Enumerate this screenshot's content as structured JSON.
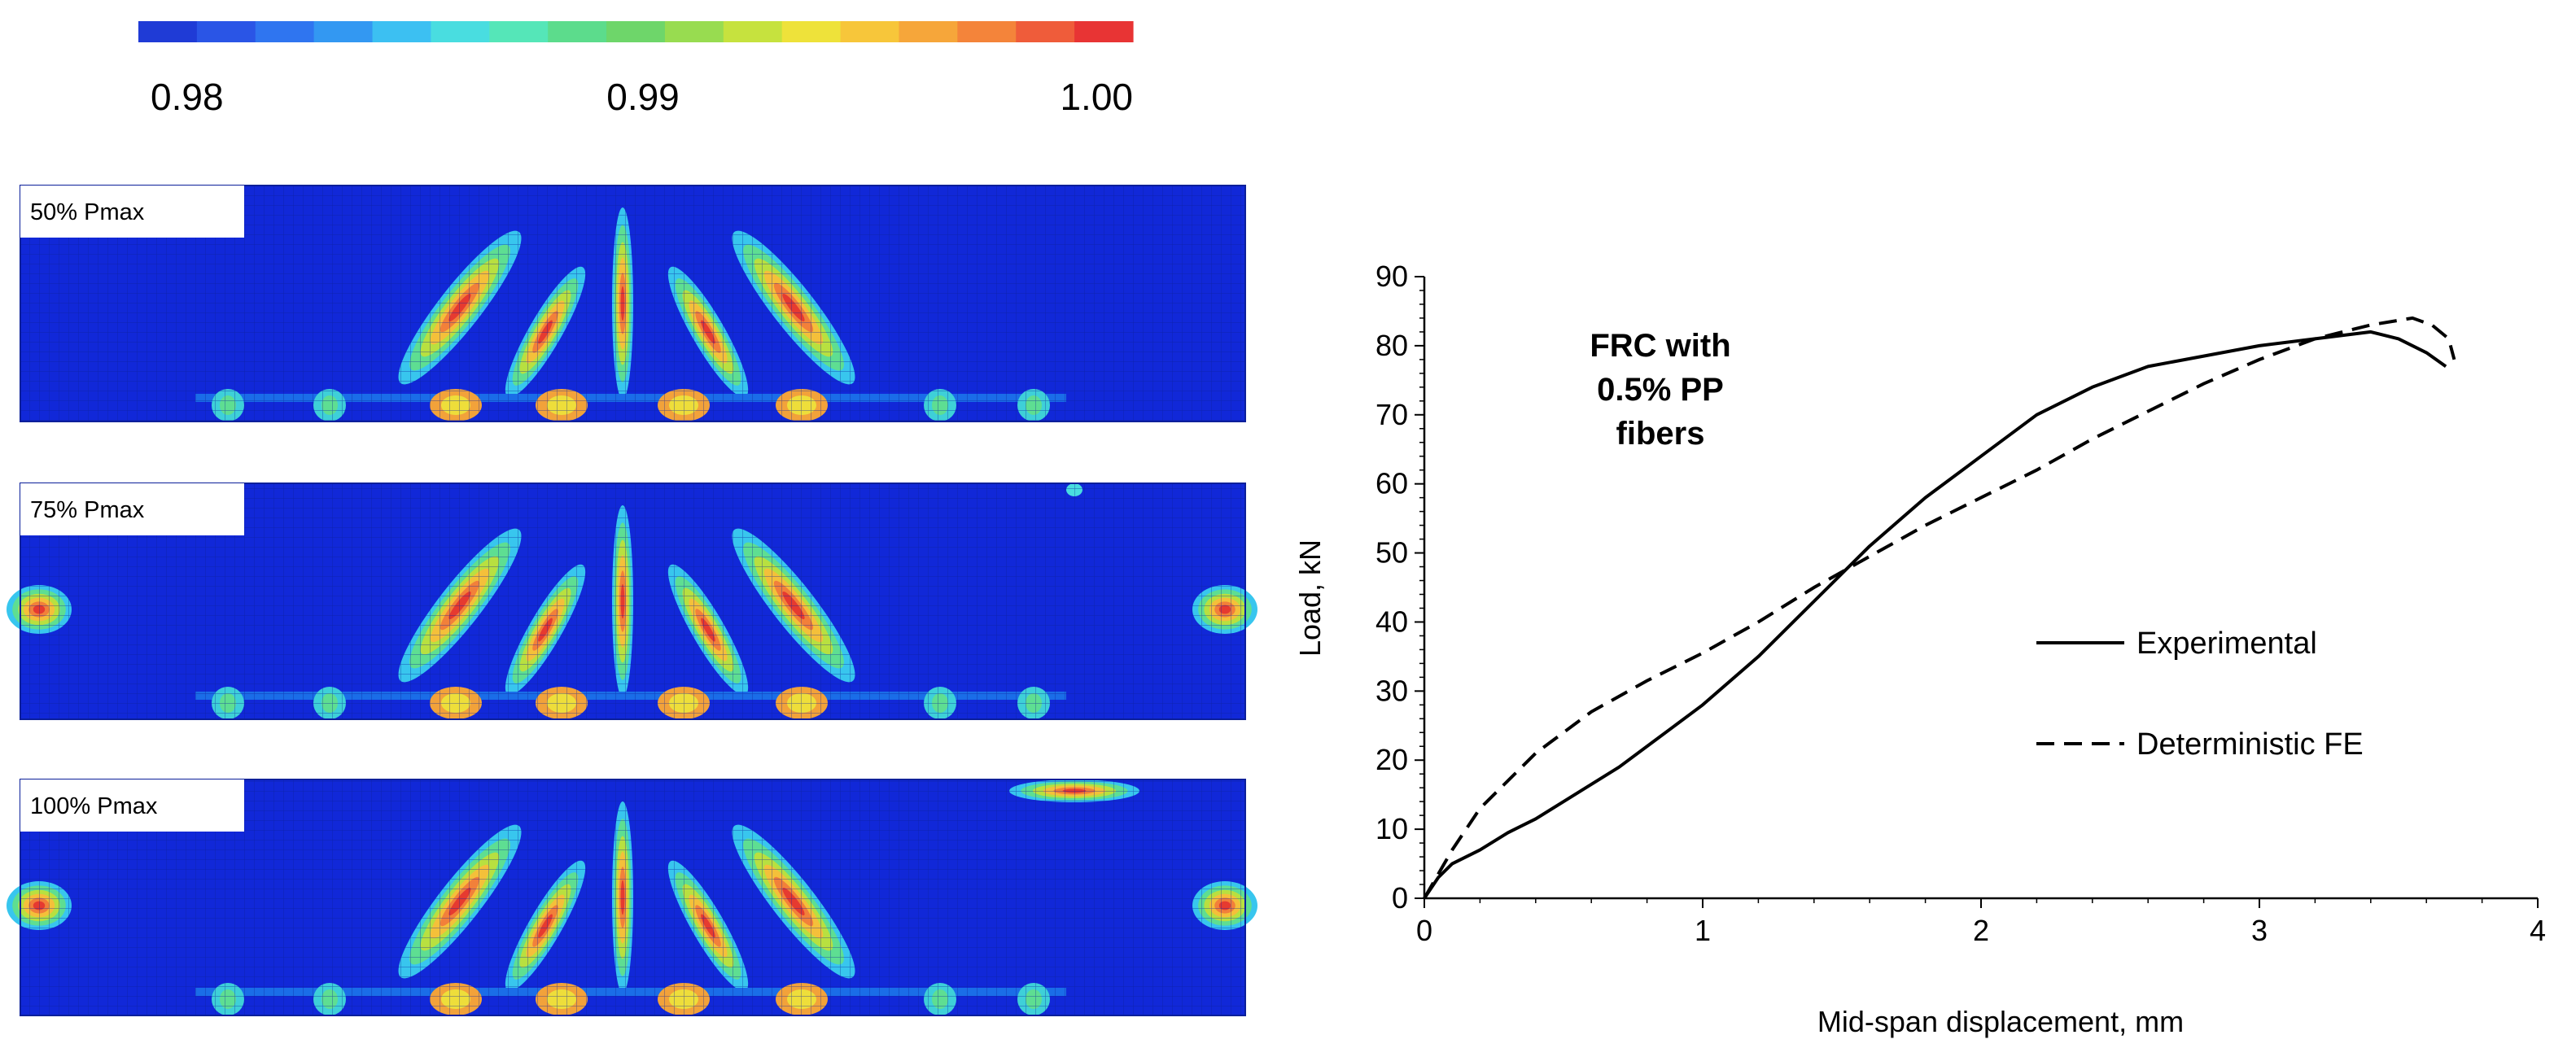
{
  "colorbar": {
    "ticks": [
      "0.98",
      "0.99",
      "1.00"
    ],
    "colors": [
      "#1f3bd6",
      "#2a55e6",
      "#2f75f0",
      "#3398f2",
      "#3cc0f2",
      "#49dde0",
      "#55e6b8",
      "#5cdc8c",
      "#6ed66a",
      "#98dc50",
      "#c6e23e",
      "#eee23a",
      "#f7c63a",
      "#f6a63a",
      "#f4843a",
      "#ef5c3a",
      "#e83434"
    ]
  },
  "panels": [
    {
      "label": "50% Pmax"
    },
    {
      "label": "75% Pmax"
    },
    {
      "label": "100% Pmax"
    }
  ],
  "chart_data": {
    "type": "line",
    "annotation": [
      "FRC with",
      "0.5% PP",
      "fibers"
    ],
    "xlabel": "Mid-span displacement, mm",
    "ylabel": "Load, kN",
    "xlim": [
      0,
      4
    ],
    "ylim": [
      0,
      90
    ],
    "xticks": [
      0,
      1,
      2,
      3,
      4
    ],
    "yticks": [
      0,
      10,
      20,
      30,
      40,
      50,
      60,
      70,
      80,
      90
    ],
    "legend_position": "right-middle",
    "series": [
      {
        "name": "Experimental",
        "style": "solid",
        "x": [
          0,
          0.05,
          0.1,
          0.2,
          0.3,
          0.4,
          0.5,
          0.7,
          0.9,
          1.0,
          1.2,
          1.4,
          1.6,
          1.8,
          2.0,
          2.2,
          2.4,
          2.6,
          2.8,
          3.0,
          3.2,
          3.4,
          3.5,
          3.6,
          3.67
        ],
        "y": [
          0,
          3,
          5,
          7,
          9.5,
          11.5,
          14,
          19,
          25,
          28,
          35,
          43,
          51,
          58,
          64,
          70,
          74,
          77,
          78.5,
          80,
          81,
          82,
          81,
          79,
          77
        ]
      },
      {
        "name": "Deterministic FE",
        "style": "dashed",
        "x": [
          0,
          0.1,
          0.2,
          0.4,
          0.6,
          0.8,
          1.0,
          1.2,
          1.4,
          1.6,
          1.8,
          2.0,
          2.2,
          2.4,
          2.6,
          2.8,
          3.0,
          3.2,
          3.4,
          3.55,
          3.62,
          3.68,
          3.7
        ],
        "y": [
          0,
          7,
          13,
          21,
          27,
          31.5,
          35.5,
          40,
          45,
          49.5,
          54,
          58,
          62,
          66.5,
          70.5,
          74.5,
          78,
          81,
          83,
          84,
          83,
          81,
          78
        ]
      }
    ]
  }
}
